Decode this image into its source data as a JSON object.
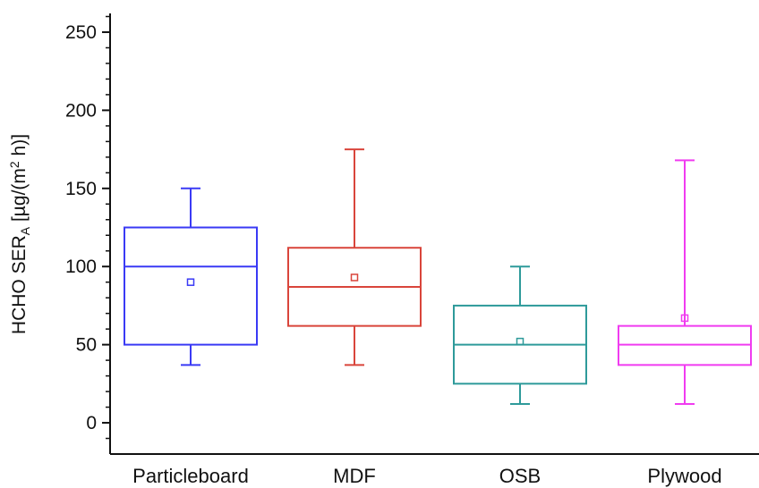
{
  "chart_data": {
    "type": "box",
    "ylabel": {
      "main": "HCHO SER",
      "subscript": "A",
      "unit_pre": " [µg/(m",
      "unit_sup": "2",
      "unit_post": " h)]"
    },
    "ylim": [
      -20,
      262
    ],
    "yticks": [
      0,
      50,
      100,
      150,
      200,
      250
    ],
    "grid": false,
    "legend": "none",
    "categories": [
      "Particleboard",
      "MDF",
      "OSB",
      "Plywood"
    ],
    "boxes": [
      {
        "category": "Particleboard",
        "color": "#3a3af5",
        "whisker_low": 37,
        "q1": 50,
        "median": 100,
        "q3": 125,
        "whisker_high": 150,
        "mean": 90
      },
      {
        "category": "MDF",
        "color": "#d9453b",
        "whisker_low": 37,
        "q1": 62,
        "median": 87,
        "q3": 112,
        "whisker_high": 175,
        "mean": 93
      },
      {
        "category": "OSB",
        "color": "#2e9a9a",
        "whisker_low": 12,
        "q1": 25,
        "median": 50,
        "q3": 75,
        "whisker_high": 100,
        "mean": 52
      },
      {
        "category": "Plywood",
        "color": "#f03cf0",
        "whisker_low": 12,
        "q1": 37,
        "median": 50,
        "q3": 62,
        "whisker_high": 168,
        "mean": 67
      }
    ]
  }
}
